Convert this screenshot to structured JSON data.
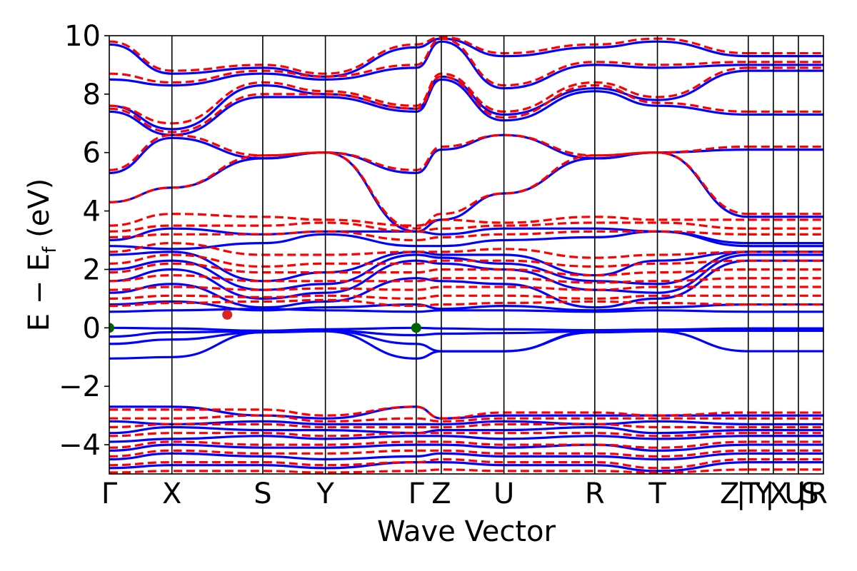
{
  "chart_data": {
    "type": "line",
    "xlabel": "Wave Vector",
    "ylabel": "E − E",
    "ylabel_sub": "f",
    "ylabel_unit": " (eV)",
    "ylim": [
      -5,
      10
    ],
    "yticks": [
      -4,
      -2,
      0,
      2,
      4,
      6,
      8,
      10
    ],
    "ytick_labels": [
      "−4",
      "−2",
      "0",
      "2",
      "4",
      "6",
      "8",
      "10"
    ],
    "k_path": [
      {
        "label": "Γ",
        "x": 0.0
      },
      {
        "label": "X",
        "x": 0.6
      },
      {
        "label": "S",
        "x": 1.47
      },
      {
        "label": "Y",
        "x": 2.07
      },
      {
        "label": "Γ",
        "x": 2.94
      },
      {
        "label": "Z",
        "x": 3.18
      },
      {
        "label": "U",
        "x": 3.78
      },
      {
        "label": "R",
        "x": 4.65
      },
      {
        "label": "T",
        "x": 5.25
      },
      {
        "label": "Z",
        "x": 6.12
      },
      {
        "label": "|",
        "x": 6.12
      },
      {
        "label": "T",
        "x": 6.12
      },
      {
        "label": "Y",
        "x": 6.36
      },
      {
        "label": "|",
        "x": 6.36
      },
      {
        "label": "X",
        "x": 6.36
      },
      {
        "label": "U",
        "x": 6.6
      },
      {
        "label": "|",
        "x": 6.6
      },
      {
        "label": "S",
        "x": 6.6
      },
      {
        "label": "R",
        "x": 6.84
      }
    ],
    "xlim": [
      0,
      6.84
    ],
    "series": [
      {
        "style": "solid",
        "color": "#0000ff",
        "bands": [
          {
            "nodes": [
              -1.05,
              -1.0,
              -0.15,
              -0.12,
              -1.05,
              -0.8,
              -0.8,
              -0.15,
              -0.12,
              -0.8
            ]
          },
          {
            "nodes": [
              -0.55,
              -0.4,
              -0.15,
              -0.1,
              -0.55,
              -0.8,
              -0.8,
              -0.12,
              -0.1,
              -0.1
            ]
          },
          {
            "nodes": [
              -0.3,
              -0.15,
              -0.12,
              -0.1,
              -0.25,
              -0.2,
              -0.18,
              -0.12,
              -0.1,
              -0.05
            ]
          },
          {
            "nodes": [
              0.0,
              -0.02,
              -0.1,
              -0.05,
              0.0,
              -0.02,
              -0.05,
              -0.08,
              -0.06,
              -0.02
            ]
          },
          {
            "nodes": [
              0.55,
              0.6,
              0.65,
              0.6,
              0.55,
              0.6,
              0.6,
              0.55,
              0.6,
              0.55
            ]
          },
          {
            "nodes": [
              0.8,
              0.9,
              0.6,
              0.7,
              0.8,
              0.65,
              0.75,
              0.6,
              0.7,
              0.8
            ]
          },
          {
            "nodes": [
              1.2,
              1.5,
              0.7,
              0.9,
              1.7,
              1.6,
              1.5,
              0.7,
              1.0,
              2.3
            ]
          },
          {
            "nodes": [
              1.6,
              2.0,
              1.0,
              1.2,
              2.3,
              2.2,
              2.0,
              1.3,
              1.2,
              2.5
            ]
          },
          {
            "nodes": [
              2.0,
              2.3,
              1.3,
              1.5,
              2.5,
              2.4,
              2.2,
              1.6,
              1.5,
              2.6
            ]
          },
          {
            "nodes": [
              2.5,
              2.6,
              1.6,
              1.9,
              2.6,
              2.5,
              2.5,
              1.8,
              2.3,
              2.6
            ]
          },
          {
            "nodes": [
              2.8,
              2.7,
              2.9,
              3.2,
              2.8,
              2.8,
              3.0,
              3.1,
              3.3,
              2.8
            ]
          },
          {
            "nodes": [
              3.0,
              3.4,
              3.2,
              3.3,
              3.3,
              3.2,
              3.4,
              3.4,
              3.3,
              2.9
            ]
          },
          {
            "nodes": [
              4.3,
              4.8,
              5.8,
              6.0,
              3.3,
              3.7,
              4.6,
              5.8,
              6.0,
              3.8
            ]
          },
          {
            "nodes": [
              5.3,
              6.5,
              5.8,
              6.0,
              5.3,
              6.1,
              6.6,
              5.8,
              6.0,
              6.1
            ]
          },
          {
            "nodes": [
              7.4,
              6.6,
              7.9,
              7.9,
              7.4,
              8.5,
              7.1,
              8.1,
              7.6,
              7.3
            ]
          },
          {
            "nodes": [
              7.6,
              6.8,
              8.3,
              8.0,
              7.5,
              8.6,
              7.3,
              8.2,
              7.8,
              8.8
            ]
          },
          {
            "nodes": [
              8.5,
              8.3,
              8.7,
              8.5,
              8.9,
              9.8,
              8.2,
              9.0,
              8.9,
              9.0
            ]
          },
          {
            "nodes": [
              9.7,
              8.7,
              8.9,
              8.6,
              9.6,
              9.9,
              9.3,
              9.6,
              9.8,
              9.3
            ]
          },
          {
            "nodes": [
              -2.7,
              -2.7,
              -3.0,
              -3.1,
              -2.7,
              -3.1,
              -3.0,
              -3.0,
              -3.0,
              -3.0
            ]
          },
          {
            "nodes": [
              -3.2,
              -3.3,
              -3.2,
              -3.3,
              -3.3,
              -3.3,
              -3.2,
              -3.3,
              -3.2,
              -3.3
            ]
          },
          {
            "nodes": [
              -3.6,
              -3.4,
              -3.5,
              -3.5,
              -3.6,
              -3.5,
              -3.5,
              -3.4,
              -3.6,
              -3.5
            ]
          },
          {
            "nodes": [
              -3.9,
              -3.8,
              -3.7,
              -3.8,
              -3.7,
              -3.7,
              -3.8,
              -3.7,
              -3.8,
              -3.7
            ]
          },
          {
            "nodes": [
              -4.2,
              -4.0,
              -4.1,
              -4.1,
              -4.0,
              -4.0,
              -4.1,
              -4.0,
              -4.2,
              -4.0
            ]
          },
          {
            "nodes": [
              -4.5,
              -4.3,
              -4.4,
              -4.5,
              -4.4,
              -4.3,
              -4.4,
              -4.4,
              -4.5,
              -4.3
            ]
          },
          {
            "nodes": [
              -4.8,
              -4.7,
              -4.7,
              -4.8,
              -4.6,
              -4.6,
              -4.7,
              -4.7,
              -4.9,
              -4.6
            ]
          }
        ]
      },
      {
        "style": "dashed",
        "color": "#ff0000",
        "bands": [
          {
            "nodes": [
              0.75,
              0.85,
              0.9,
              0.95,
              0.75,
              0.8,
              0.85,
              0.9,
              0.85,
              0.8
            ]
          },
          {
            "nodes": [
              1.0,
              1.1,
              1.05,
              1.1,
              1.0,
              1.1,
              1.1,
              1.0,
              1.1,
              1.1
            ]
          },
          {
            "nodes": [
              1.3,
              1.4,
              1.3,
              1.35,
              1.3,
              1.4,
              1.4,
              1.3,
              1.4,
              1.4
            ]
          },
          {
            "nodes": [
              1.6,
              1.8,
              1.6,
              1.6,
              1.6,
              1.7,
              1.7,
              1.55,
              1.6,
              1.7
            ]
          },
          {
            "nodes": [
              1.9,
              2.2,
              1.9,
              1.9,
              1.9,
              2.0,
              2.0,
              1.8,
              1.9,
              2.0
            ]
          },
          {
            "nodes": [
              2.2,
              2.5,
              2.1,
              2.2,
              2.2,
              2.3,
              2.3,
              2.1,
              2.2,
              2.3
            ]
          },
          {
            "nodes": [
              2.6,
              2.9,
              2.5,
              2.5,
              2.6,
              2.6,
              2.7,
              2.4,
              2.5,
              2.6
            ]
          },
          {
            "nodes": [
              3.1,
              3.2,
              3.2,
              3.3,
              3.0,
              3.1,
              3.2,
              3.3,
              3.3,
              3.2
            ]
          },
          {
            "nodes": [
              3.3,
              3.5,
              3.5,
              3.6,
              3.3,
              3.4,
              3.5,
              3.6,
              3.6,
              3.4
            ]
          },
          {
            "nodes": [
              3.5,
              3.9,
              3.8,
              3.7,
              3.5,
              3.7,
              3.6,
              3.8,
              3.7,
              3.7
            ]
          },
          {
            "nodes": [
              4.3,
              4.8,
              5.9,
              6.0,
              3.4,
              3.9,
              4.6,
              5.9,
              6.0,
              3.9
            ]
          },
          {
            "nodes": [
              5.4,
              6.6,
              5.9,
              6.0,
              5.4,
              6.2,
              6.6,
              5.9,
              6.0,
              6.2
            ]
          },
          {
            "nodes": [
              7.5,
              6.7,
              8.0,
              8.0,
              7.5,
              8.6,
              7.2,
              8.3,
              7.7,
              7.4
            ]
          },
          {
            "nodes": [
              7.6,
              7.0,
              8.4,
              8.1,
              7.6,
              8.7,
              7.4,
              8.4,
              7.9,
              8.9
            ]
          },
          {
            "nodes": [
              8.7,
              8.4,
              8.8,
              8.6,
              9.0,
              9.9,
              8.3,
              9.1,
              9.0,
              9.1
            ]
          },
          {
            "nodes": [
              9.8,
              8.8,
              9.0,
              8.7,
              9.7,
              9.95,
              9.4,
              9.7,
              9.9,
              9.4
            ]
          },
          {
            "nodes": [
              -2.8,
              -2.8,
              -2.8,
              -3.0,
              -2.7,
              -3.1,
              -2.9,
              -2.9,
              -3.0,
              -2.9
            ]
          },
          {
            "nodes": [
              -3.1,
              -3.1,
              -3.0,
              -3.2,
              -3.1,
              -3.2,
              -3.1,
              -3.1,
              -3.1,
              -3.1
            ]
          },
          {
            "nodes": [
              -3.4,
              -3.3,
              -3.3,
              -3.4,
              -3.4,
              -3.4,
              -3.3,
              -3.3,
              -3.4,
              -3.4
            ]
          },
          {
            "nodes": [
              -3.7,
              -3.6,
              -3.6,
              -3.7,
              -3.6,
              -3.6,
              -3.6,
              -3.6,
              -3.7,
              -3.6
            ]
          },
          {
            "nodes": [
              -4.1,
              -3.9,
              -4.0,
              -4.0,
              -3.9,
              -3.9,
              -4.0,
              -4.0,
              -4.1,
              -3.9
            ]
          },
          {
            "nodes": [
              -4.4,
              -4.2,
              -4.3,
              -4.3,
              -4.2,
              -4.2,
              -4.3,
              -4.3,
              -4.4,
              -4.2
            ]
          },
          {
            "nodes": [
              -4.7,
              -4.6,
              -4.6,
              -4.7,
              -4.6,
              -4.5,
              -4.6,
              -4.6,
              -4.8,
              -4.5
            ]
          },
          {
            "nodes": [
              -4.95,
              -4.9,
              -4.9,
              -4.95,
              -4.9,
              -4.85,
              -4.9,
              -4.9,
              -4.95,
              -4.85
            ]
          }
        ]
      }
    ],
    "markers": [
      {
        "x": 0.0,
        "y": 0.0,
        "color": "#006400"
      },
      {
        "x": 2.94,
        "y": 0.0,
        "color": "#006400"
      },
      {
        "x": 1.13,
        "y": 0.45,
        "color": "#dd2222"
      }
    ],
    "colors": {
      "dft": "#ff0000",
      "model": "#0000ff",
      "vbm": "#006400",
      "cbm": "#dd2222"
    }
  }
}
